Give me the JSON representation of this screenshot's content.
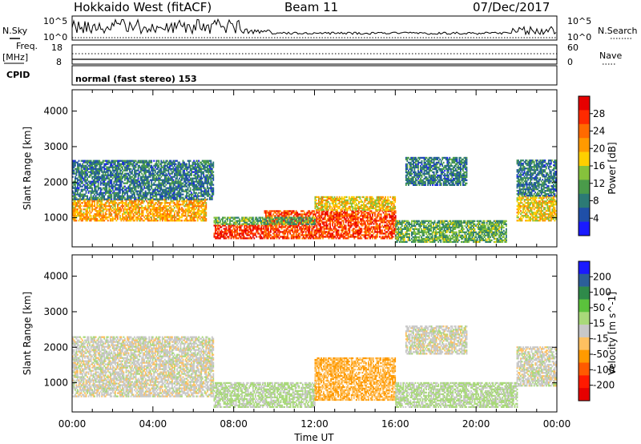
{
  "header": {
    "title": "Hokkaido West (fitACF)",
    "beam": "Beam 11",
    "date": "07/Dec/2017"
  },
  "left_labels": {
    "nsky": "N.Sky",
    "freq": "Freq.",
    "freq_unit": "[MHz]",
    "cpid": "CPID"
  },
  "right_labels": {
    "nsearch": "N.Search",
    "nave": "Nave"
  },
  "noise_axis": {
    "top": "10^5",
    "bottom": "10^0"
  },
  "freq_axis": {
    "top": "18",
    "bottom": "8"
  },
  "nave_axis": {
    "top": "60",
    "bottom": "0"
  },
  "cpid_text": "normal (fast stereo) 153",
  "chart_data": [
    {
      "type": "heatmap",
      "name": "power",
      "ylabel": "Slant Range [km]",
      "ylim": [
        180,
        4600
      ],
      "yticks": [
        "1000",
        "2000",
        "3000",
        "4000"
      ],
      "xlabel": "Time UT",
      "xlim": [
        "00:00",
        "24:00"
      ],
      "xticks": [
        "00:00",
        "04:00",
        "08:00",
        "12:00",
        "16:00",
        "20:00",
        "00:00"
      ],
      "colorbar": {
        "label": "Power [dB]",
        "ticks": [
          "4",
          "8",
          "12",
          "16",
          "20",
          "24",
          "28"
        ],
        "colors": [
          "#1a1aff",
          "#1f4fa8",
          "#2c7a75",
          "#4a9b4a",
          "#86c23c",
          "#ffcf00",
          "#ff9a00",
          "#ff6a00",
          "#ff2a00",
          "#e60000"
        ]
      },
      "regions": [
        {
          "t0": 0.0,
          "t1": 6.6,
          "r0": 900,
          "r1": 1500,
          "level": 20
        },
        {
          "t0": 0.0,
          "t1": 7.0,
          "r0": 1500,
          "r1": 2600,
          "level": 8
        },
        {
          "t0": 7.0,
          "t1": 9.5,
          "r0": 400,
          "r1": 800,
          "level": 28
        },
        {
          "t0": 9.5,
          "t1": 16.0,
          "r0": 400,
          "r1": 1200,
          "level": 26
        },
        {
          "t0": 12.0,
          "t1": 16.0,
          "r0": 1200,
          "r1": 1600,
          "level": 18
        },
        {
          "t0": 7.0,
          "t1": 12.0,
          "r0": 800,
          "r1": 1000,
          "level": 12
        },
        {
          "t0": 16.0,
          "t1": 21.5,
          "r0": 300,
          "r1": 900,
          "level": 12
        },
        {
          "t0": 16.5,
          "t1": 19.5,
          "r0": 1900,
          "r1": 2700,
          "level": 8
        },
        {
          "t0": 22.0,
          "t1": 24.0,
          "r0": 900,
          "r1": 1600,
          "level": 18
        },
        {
          "t0": 22.0,
          "t1": 24.0,
          "r0": 1600,
          "r1": 2600,
          "level": 8
        }
      ]
    },
    {
      "type": "heatmap",
      "name": "velocity",
      "ylabel": "Slant Range [km]",
      "ylim": [
        180,
        4600
      ],
      "yticks": [
        "1000",
        "2000",
        "3000",
        "4000"
      ],
      "xlabel": "Time UT",
      "xlim": [
        "00:00",
        "24:00"
      ],
      "xticks": [
        "00:00",
        "04:00",
        "08:00",
        "12:00",
        "16:00",
        "20:00",
        "00:00"
      ],
      "colorbar": {
        "label": "Velocity [m s^-1]",
        "ticks": [
          "200",
          "100",
          "50",
          "15",
          "-15",
          "-50",
          "-100",
          "-200"
        ],
        "colors": [
          "#1a1aff",
          "#2c5f9a",
          "#2f8a4a",
          "#5bc23c",
          "#a9d97a",
          "#c8c8c8",
          "#ffc060",
          "#ff9a00",
          "#ff5a00",
          "#ff1a00",
          "#e60000"
        ]
      },
      "regions": [
        {
          "t0": 0.0,
          "t1": 7.0,
          "r0": 600,
          "r1": 2300,
          "level": 0
        },
        {
          "t0": 7.0,
          "t1": 12.0,
          "r0": 300,
          "r1": 1000,
          "level": 30
        },
        {
          "t0": 12.0,
          "t1": 16.0,
          "r0": 500,
          "r1": 1700,
          "level": -60
        },
        {
          "t0": 16.0,
          "t1": 22.0,
          "r0": 300,
          "r1": 1000,
          "level": 30
        },
        {
          "t0": 16.5,
          "t1": 19.5,
          "r0": 1800,
          "r1": 2600,
          "level": 0
        },
        {
          "t0": 22.0,
          "t1": 24.0,
          "r0": 900,
          "r1": 2000,
          "level": 0
        }
      ]
    }
  ]
}
